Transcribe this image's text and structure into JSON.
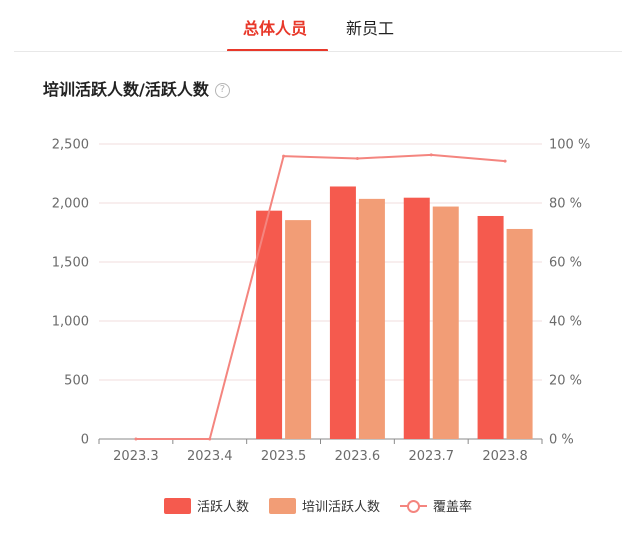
{
  "tabs": [
    {
      "label": "总体人员",
      "active": true
    },
    {
      "label": "新员工",
      "active": false
    }
  ],
  "section": {
    "title": "培训活跃人数/活跃人数",
    "help_icon": "question-circle-icon"
  },
  "colors": {
    "accent": "#e8382a",
    "active_bar": "#f55a4e",
    "trained_bar": "#f29d76",
    "coverage_line": "#f4857f"
  },
  "chart_data": {
    "type": "bar",
    "categories": [
      "2023.3",
      "2023.4",
      "2023.5",
      "2023.6",
      "2023.7",
      "2023.8"
    ],
    "series": [
      {
        "name": "活跃人数",
        "type": "bar",
        "axis": "left",
        "values": [
          0,
          0,
          1935,
          2140,
          2045,
          1890
        ]
      },
      {
        "name": "培训活跃人数",
        "type": "bar",
        "axis": "left",
        "values": [
          0,
          0,
          1855,
          2035,
          1970,
          1780
        ]
      },
      {
        "name": "覆盖率",
        "type": "line",
        "axis": "right",
        "values": [
          0,
          0,
          95.9,
          95.1,
          96.3,
          94.2
        ]
      }
    ],
    "y_left": {
      "min": 0,
      "max": 2500,
      "ticks": [
        "0",
        "500",
        "1,000",
        "1,500",
        "2,000",
        "2,500"
      ]
    },
    "y_right": {
      "min": 0,
      "max": 100,
      "ticks": [
        "0 %",
        "20 %",
        "40 %",
        "60 %",
        "80 %",
        "100 %"
      ]
    },
    "grid": true,
    "legend_position": "bottom"
  }
}
